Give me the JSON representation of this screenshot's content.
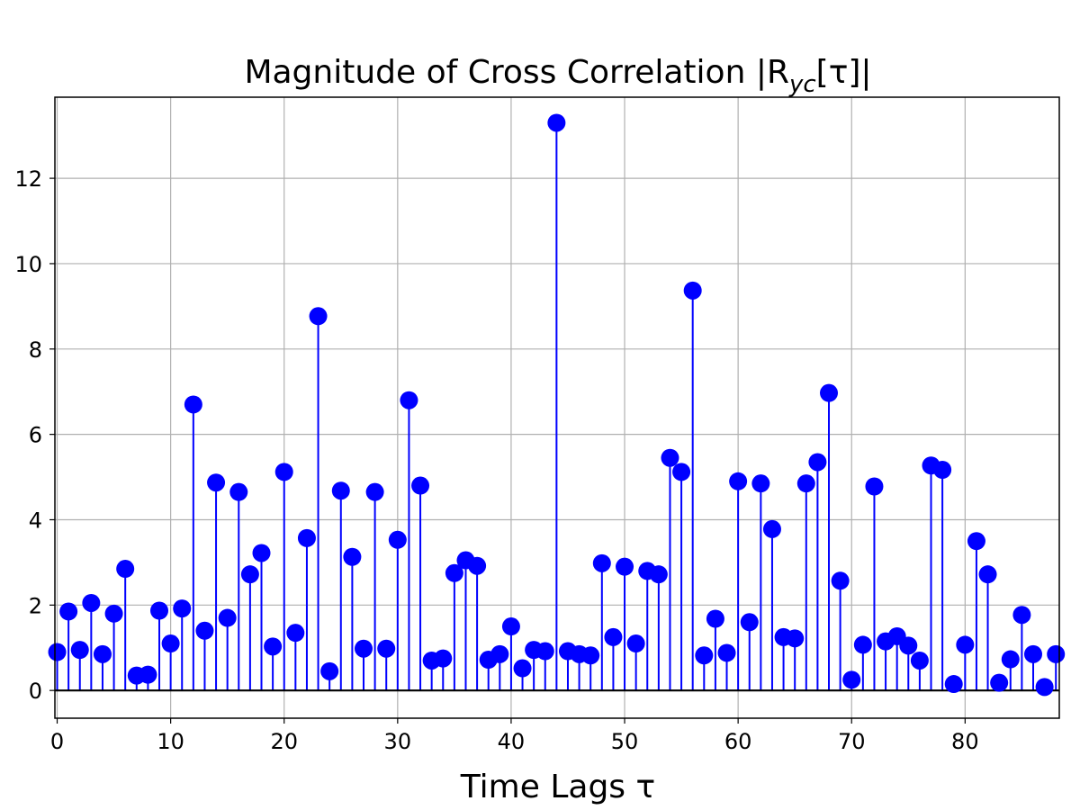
{
  "chart_data": {
    "type": "stem",
    "title": "Magnitude of Cross Correlation |R",
    "title_subscript": "yc",
    "title_tail": "[τ]|",
    "xlabel": "Time Lags τ",
    "ylabel": "",
    "xlim": [
      -0.2,
      88.3
    ],
    "ylim": [
      -0.65,
      13.9
    ],
    "xticks": [
      0,
      10,
      20,
      30,
      40,
      50,
      60,
      70,
      80
    ],
    "yticks": [
      0,
      2,
      4,
      6,
      8,
      10,
      12
    ],
    "grid": true,
    "baseline": 0,
    "colors": {
      "stem": "#0000ff",
      "marker": "#0000ff",
      "baseline": "#000000",
      "grid": "#b0b0b0"
    },
    "x": [
      0,
      1,
      2,
      3,
      4,
      5,
      6,
      7,
      8,
      9,
      10,
      11,
      12,
      13,
      14,
      15,
      16,
      17,
      18,
      19,
      20,
      21,
      22,
      23,
      24,
      25,
      26,
      27,
      28,
      29,
      30,
      31,
      32,
      33,
      34,
      35,
      36,
      37,
      38,
      39,
      40,
      41,
      42,
      43,
      44,
      45,
      46,
      47,
      48,
      49,
      50,
      51,
      52,
      53,
      54,
      55,
      56,
      57,
      58,
      59,
      60,
      61,
      62,
      63,
      64,
      65,
      66,
      67,
      68,
      69,
      70,
      71,
      72,
      73,
      74,
      75,
      76,
      77,
      78,
      79,
      80,
      81,
      82,
      83,
      84,
      85,
      86,
      87,
      88
    ],
    "values": [
      0.9,
      1.85,
      0.95,
      2.05,
      0.85,
      1.8,
      2.85,
      0.35,
      0.37,
      1.87,
      1.1,
      1.92,
      6.7,
      1.4,
      4.87,
      1.7,
      4.65,
      2.72,
      3.22,
      1.03,
      5.12,
      1.35,
      3.57,
      8.77,
      0.45,
      4.68,
      3.13,
      0.98,
      4.65,
      0.98,
      3.53,
      6.8,
      4.8,
      0.7,
      0.75,
      2.75,
      3.05,
      2.92,
      0.72,
      0.85,
      1.5,
      0.52,
      0.95,
      0.92,
      13.3,
      0.92,
      0.85,
      0.82,
      2.98,
      1.25,
      2.9,
      1.1,
      2.8,
      2.72,
      5.45,
      5.12,
      9.37,
      0.82,
      1.68,
      0.88,
      4.9,
      1.6,
      4.85,
      3.78,
      1.25,
      1.22,
      4.85,
      5.35,
      6.97,
      2.57,
      0.25,
      1.07,
      4.78,
      1.15,
      1.27,
      1.05,
      0.7,
      5.27,
      5.17,
      0.15,
      1.07,
      3.5,
      2.72,
      0.18,
      0.73,
      1.77,
      0.85,
      0.08,
      0.85
    ]
  }
}
